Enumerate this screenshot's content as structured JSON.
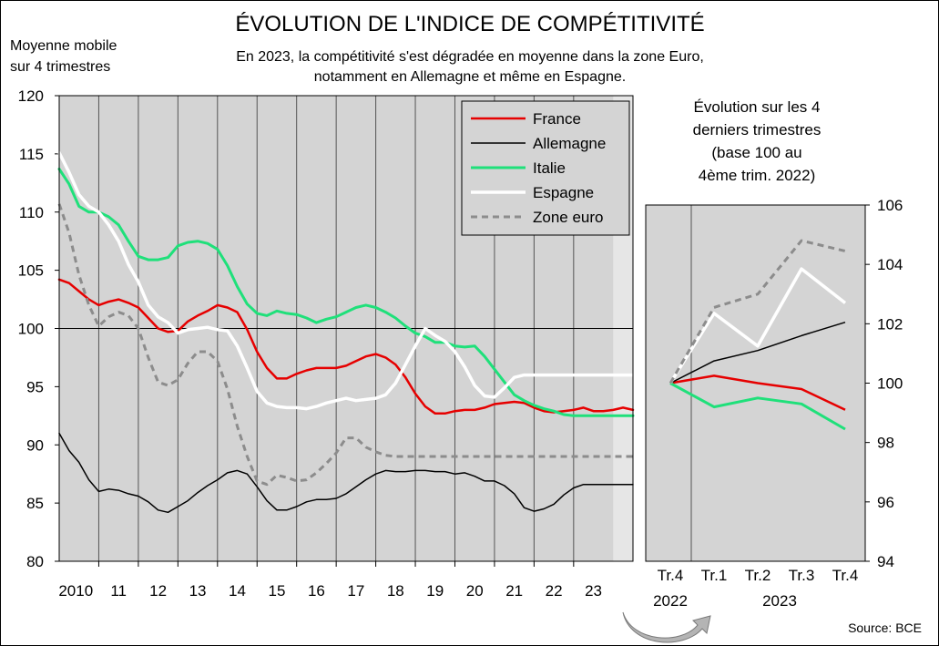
{
  "title": "ÉVOLUTION DE L'INDICE DE COMPÉTITIVITÉ",
  "subtitle_lines": [
    "En 2023, la compétitivité s'est dégradée en moyenne dans la zone Euro,",
    "notamment en Allemagne et même en Espagne."
  ],
  "source": "Source: BCE",
  "colors": {
    "France": "#e60000",
    "Allemagne": "#000000",
    "Italie": "#1fe07a",
    "Espagne": "#ffffff",
    "Zone euro": "#8c8c8c",
    "plot_bg": "#d4d4d4",
    "band_bg": "#e6e6e6",
    "arrow": "#b4b4b4"
  },
  "chart_data": [
    {
      "type": "line",
      "ylabel_lines": [
        "Moyenne mobile",
        "sur 4 trimestres"
      ],
      "xlabel": "",
      "ylim": [
        80,
        120
      ],
      "yticks": [
        80,
        85,
        90,
        95,
        100,
        105,
        110,
        115,
        120
      ],
      "xlim": [
        2009.5,
        2024.0
      ],
      "xtick_labels": [
        {
          "label": "2010",
          "x": 2009.92
        },
        {
          "label": "11",
          "x": 2011.0
        },
        {
          "label": "12",
          "x": 2012.0
        },
        {
          "label": "13",
          "x": 2013.0
        },
        {
          "label": "14",
          "x": 2014.0
        },
        {
          "label": "15",
          "x": 2015.0
        },
        {
          "label": "16",
          "x": 2016.0
        },
        {
          "label": "17",
          "x": 2017.0
        },
        {
          "label": "18",
          "x": 2018.0
        },
        {
          "label": "19",
          "x": 2019.0
        },
        {
          "label": "20",
          "x": 2020.0
        },
        {
          "label": "21",
          "x": 2021.0
        },
        {
          "label": "22",
          "x": 2022.0
        },
        {
          "label": "23",
          "x": 2023.0
        }
      ],
      "year_boundaries": [
        2010.5,
        2011.5,
        2012.5,
        2013.5,
        2014.5,
        2015.5,
        2016.5,
        2017.5,
        2018.5,
        2019.5,
        2020.5,
        2021.5,
        2022.5
      ],
      "shaded_band": [
        2023.5,
        2024.0
      ],
      "reference_line": 100,
      "legend_position": "top-right",
      "series": [
        {
          "name": "France",
          "style": "solid",
          "width": 2.5,
          "x": [
            2009.5,
            2009.75,
            2010,
            2010.25,
            2010.5,
            2010.75,
            2011,
            2011.25,
            2011.5,
            2011.75,
            2012,
            2012.25,
            2012.5,
            2012.75,
            2013,
            2013.25,
            2013.5,
            2013.75,
            2014,
            2014.25,
            2014.5,
            2014.75,
            2015,
            2015.25,
            2015.5,
            2015.75,
            2016,
            2016.25,
            2016.5,
            2016.75,
            2017,
            2017.25,
            2017.5,
            2017.75,
            2018,
            2018.25,
            2018.5,
            2018.75,
            2019,
            2019.25,
            2019.5,
            2019.75,
            2020,
            2020.25,
            2020.5,
            2020.75,
            2021,
            2021.25,
            2021.5,
            2021.75,
            2022,
            2022.25,
            2022.5,
            2022.75,
            2023,
            2023.25,
            2023.5,
            2023.75,
            2024
          ],
          "values": [
            104.2,
            103.9,
            103.2,
            102.5,
            102.0,
            102.3,
            102.5,
            102.2,
            101.8,
            100.9,
            100.0,
            99.7,
            99.8,
            100.6,
            101.1,
            101.5,
            102.0,
            101.8,
            101.4,
            99.9,
            98.0,
            96.6,
            95.7,
            95.7,
            96.1,
            96.4,
            96.6,
            96.6,
            96.6,
            96.8,
            97.2,
            97.6,
            97.8,
            97.5,
            96.9,
            95.8,
            94.4,
            93.3,
            92.7,
            92.7,
            92.9,
            93.0,
            93.0,
            93.2,
            93.5,
            93.6,
            93.7,
            93.6,
            93.2,
            92.9,
            92.8,
            92.9,
            93.0,
            93.2,
            92.9,
            92.9,
            93.0,
            93.2,
            93.0
          ]
        },
        {
          "name": "Allemagne",
          "style": "solid",
          "width": 1.5,
          "x": [
            2009.5,
            2009.75,
            2010,
            2010.25,
            2010.5,
            2010.75,
            2011,
            2011.25,
            2011.5,
            2011.75,
            2012,
            2012.25,
            2012.5,
            2012.75,
            2013,
            2013.25,
            2013.5,
            2013.75,
            2014,
            2014.25,
            2014.5,
            2014.75,
            2015,
            2015.25,
            2015.5,
            2015.75,
            2016,
            2016.25,
            2016.5,
            2016.75,
            2017,
            2017.25,
            2017.5,
            2017.75,
            2018,
            2018.25,
            2018.5,
            2018.75,
            2019,
            2019.25,
            2019.5,
            2019.75,
            2020,
            2020.25,
            2020.5,
            2020.75,
            2021,
            2021.25,
            2021.5,
            2021.75,
            2022,
            2022.25,
            2022.5,
            2022.75,
            2023,
            2023.25,
            2023.5,
            2023.75,
            2024
          ],
          "values": [
            91.0,
            89.5,
            88.5,
            87.0,
            86.0,
            86.2,
            86.1,
            85.8,
            85.6,
            85.1,
            84.4,
            84.2,
            84.7,
            85.2,
            85.9,
            86.5,
            87.0,
            87.6,
            87.8,
            87.5,
            86.4,
            85.2,
            84.4,
            84.4,
            84.7,
            85.1,
            85.3,
            85.3,
            85.4,
            85.8,
            86.4,
            87.0,
            87.5,
            87.8,
            87.7,
            87.7,
            87.8,
            87.8,
            87.7,
            87.7,
            87.5,
            87.6,
            87.3,
            86.9,
            86.9,
            86.5,
            85.8,
            84.6,
            84.3,
            84.5,
            84.9,
            85.7,
            86.3,
            86.6,
            86.6,
            86.6,
            86.6,
            86.6,
            86.6
          ]
        },
        {
          "name": "Italie",
          "style": "solid",
          "width": 3,
          "x": [
            2009.5,
            2009.75,
            2010,
            2010.25,
            2010.5,
            2010.75,
            2011,
            2011.25,
            2011.5,
            2011.75,
            2012,
            2012.25,
            2012.5,
            2012.75,
            2013,
            2013.25,
            2013.5,
            2013.75,
            2014,
            2014.25,
            2014.5,
            2014.75,
            2015,
            2015.25,
            2015.5,
            2015.75,
            2016,
            2016.25,
            2016.5,
            2016.75,
            2017,
            2017.25,
            2017.5,
            2017.75,
            2018,
            2018.25,
            2018.5,
            2018.75,
            2019,
            2019.25,
            2019.5,
            2019.75,
            2020,
            2020.25,
            2020.5,
            2020.75,
            2021,
            2021.25,
            2021.5,
            2021.75,
            2022,
            2022.25,
            2022.5,
            2022.75,
            2023,
            2023.25,
            2023.5,
            2023.75,
            2024
          ],
          "values": [
            113.7,
            112.4,
            110.5,
            110.0,
            110.0,
            109.6,
            108.9,
            107.5,
            106.2,
            105.9,
            105.9,
            106.1,
            107.1,
            107.4,
            107.5,
            107.3,
            106.8,
            105.4,
            103.6,
            102.1,
            101.3,
            101.1,
            101.5,
            101.3,
            101.2,
            100.9,
            100.5,
            100.8,
            101.0,
            101.4,
            101.8,
            102.0,
            101.8,
            101.4,
            100.9,
            100.2,
            99.6,
            99.3,
            98.8,
            98.8,
            98.5,
            98.4,
            98.5,
            97.6,
            96.5,
            95.4,
            94.3,
            93.8,
            93.4,
            93.1,
            92.9,
            92.6,
            92.5,
            92.5,
            92.5,
            92.5,
            92.5,
            92.5,
            92.5
          ]
        },
        {
          "name": "Espagne",
          "style": "solid",
          "width": 3.5,
          "x": [
            2009.5,
            2009.75,
            2010,
            2010.25,
            2010.5,
            2010.75,
            2011,
            2011.25,
            2011.5,
            2011.75,
            2012,
            2012.25,
            2012.5,
            2012.75,
            2013,
            2013.25,
            2013.5,
            2013.75,
            2014,
            2014.25,
            2014.5,
            2014.75,
            2015,
            2015.25,
            2015.5,
            2015.75,
            2016,
            2016.25,
            2016.5,
            2016.75,
            2017,
            2017.25,
            2017.5,
            2017.75,
            2018,
            2018.25,
            2018.5,
            2018.75,
            2019,
            2019.25,
            2019.5,
            2019.75,
            2020,
            2020.25,
            2020.5,
            2020.75,
            2021,
            2021.25,
            2021.5,
            2021.75,
            2022,
            2022.25,
            2022.5,
            2022.75,
            2023,
            2023.25,
            2023.5,
            2023.75,
            2024
          ],
          "values": [
            115.1,
            113.4,
            111.5,
            110.5,
            110.0,
            108.9,
            107.5,
            105.5,
            104.0,
            102.0,
            101.0,
            100.5,
            99.6,
            99.9,
            100.0,
            100.1,
            99.9,
            99.8,
            98.5,
            96.6,
            94.6,
            93.6,
            93.3,
            93.2,
            93.2,
            93.1,
            93.3,
            93.6,
            93.8,
            94.0,
            93.8,
            93.9,
            94.0,
            94.3,
            95.3,
            96.9,
            98.5,
            100.0,
            99.4,
            98.9,
            98.0,
            96.7,
            95.1,
            94.2,
            94.1,
            94.9,
            95.8,
            96.0,
            96.0,
            96.0,
            96.0,
            96.0,
            96.0,
            96.0,
            96.0,
            96.0,
            96.0,
            96.0,
            96.0
          ]
        },
        {
          "name": "Zone euro",
          "style": "dashed",
          "width": 3,
          "x": [
            2009.5,
            2009.75,
            2010,
            2010.25,
            2010.5,
            2010.75,
            2011,
            2011.25,
            2011.5,
            2011.75,
            2012,
            2012.25,
            2012.5,
            2012.75,
            2013,
            2013.25,
            2013.5,
            2013.75,
            2014,
            2014.25,
            2014.5,
            2014.75,
            2015,
            2015.25,
            2015.5,
            2015.75,
            2016,
            2016.25,
            2016.5,
            2016.75,
            2017,
            2017.25,
            2017.5,
            2017.75,
            2018,
            2018.25,
            2018.5,
            2018.75,
            2019,
            2019.25,
            2019.5,
            2019.75,
            2020,
            2020.25,
            2020.5,
            2020.75,
            2021,
            2021.25,
            2021.5,
            2021.75,
            2022,
            2022.25,
            2022.5,
            2022.75,
            2023,
            2023.25,
            2023.5,
            2023.75,
            2024
          ],
          "values": [
            110.7,
            108.2,
            104.6,
            102.0,
            100.2,
            101.0,
            101.4,
            101.1,
            100.0,
            97.5,
            95.4,
            95.1,
            95.6,
            97.0,
            98.0,
            98.0,
            97.2,
            94.8,
            91.6,
            89.0,
            86.9,
            86.6,
            87.4,
            87.2,
            86.9,
            87.0,
            87.6,
            88.4,
            89.3,
            90.6,
            90.6,
            89.8,
            89.4,
            89.1,
            89.0,
            89.0,
            89.0,
            89.0,
            89.0,
            89.0,
            89.0,
            89.0,
            89.0,
            89.0,
            89.0,
            89.0,
            89.0,
            89.0,
            89.0,
            89.0,
            89.0,
            89.0,
            89.0,
            89.0,
            89.0,
            89.0,
            89.0,
            89.0,
            89.0
          ]
        }
      ]
    },
    {
      "type": "line",
      "title_lines": [
        "Évolution sur les 4",
        "derniers trimestres",
        "(base 100 au",
        "4ème trim. 2022)"
      ],
      "ylim": [
        94,
        106
      ],
      "yticks": [
        94,
        96,
        98,
        100,
        102,
        104,
        106
      ],
      "categories": [
        "Tr.4",
        "Tr.1",
        "Tr.2",
        "Tr.3",
        "Tr.4"
      ],
      "year_labels": [
        {
          "label": "2022",
          "index": 0
        },
        {
          "label": "2023",
          "index": 2
        }
      ],
      "series": [
        {
          "name": "France",
          "values": [
            100.0,
            100.25,
            100.0,
            99.8,
            99.1
          ]
        },
        {
          "name": "Allemagne",
          "values": [
            100.0,
            100.75,
            101.1,
            101.6,
            102.05
          ]
        },
        {
          "name": "Italie",
          "values": [
            100.0,
            99.2,
            99.5,
            99.3,
            98.45
          ]
        },
        {
          "name": "Espagne",
          "values": [
            100.0,
            102.35,
            101.25,
            103.85,
            102.7
          ]
        },
        {
          "name": "Zone euro",
          "values": [
            100.0,
            102.55,
            103.0,
            104.8,
            104.45
          ]
        }
      ]
    }
  ]
}
